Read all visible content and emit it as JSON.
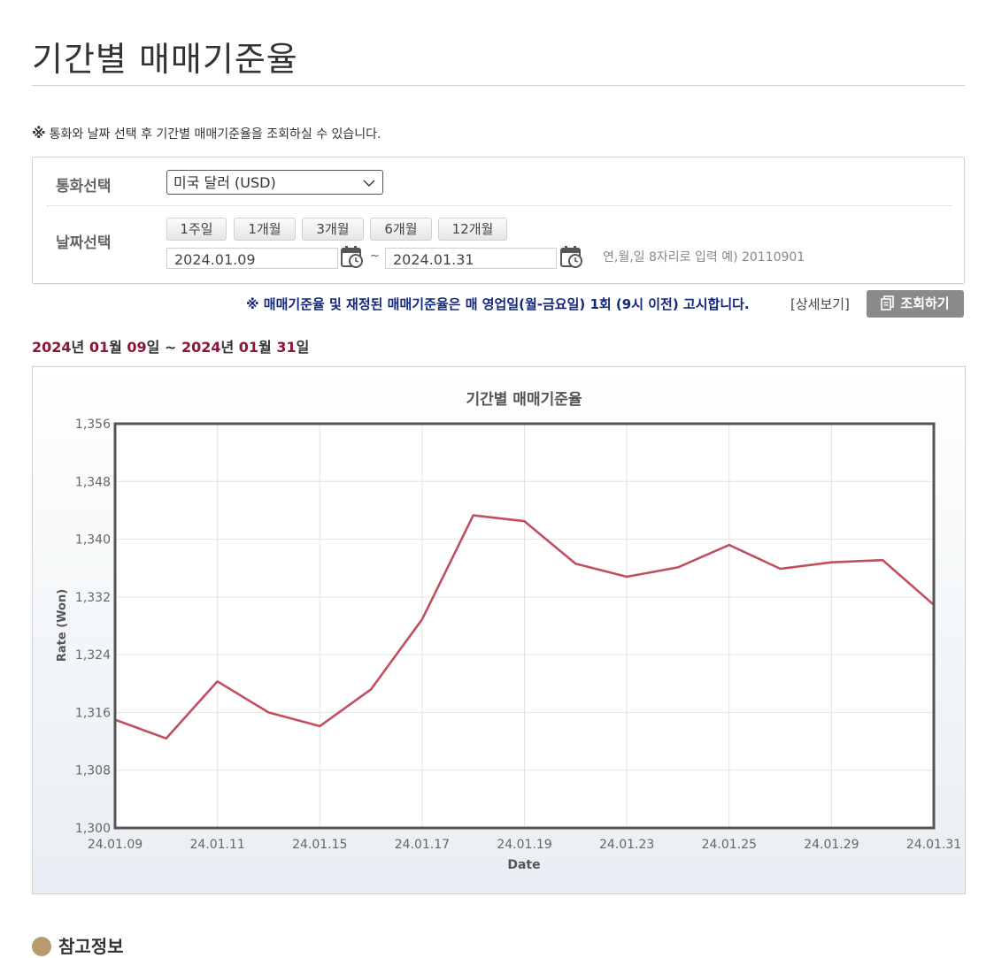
{
  "page_title": "기간별 매매기준율",
  "notice": {
    "mark": "※",
    "text": "통화와 날짜 선택 후 기간별 매매기준율을 조회하실 수 있습니다."
  },
  "search": {
    "currency_label": "통화선택",
    "currency_value": "미국 달러 (USD)",
    "date_label": "날짜선택",
    "periods": [
      {
        "label": "1주일"
      },
      {
        "label": "1개월"
      },
      {
        "label": "3개월"
      },
      {
        "label": "6개월"
      },
      {
        "label": "12개월"
      }
    ],
    "start_date": "2024.01.09",
    "separator": "~",
    "end_date": "2024.01.31",
    "date_hint": "연,월,일 8자리로 입력 예) 20110901"
  },
  "bottom_notice": "※ 매매기준율 및 재정된 매매기준율은 매 영업일(월-금요일) 1회 (9시 이전) 고시합니다.",
  "detail_link": "[상세보기]",
  "search_button": "조회하기",
  "date_range": {
    "y1": "2024",
    "y_unit1": "년 ",
    "m1": "01",
    "m_unit1": "월 ",
    "d1": "09",
    "d_unit1": "일 ~ ",
    "y2": "2024",
    "y_unit2": "년 ",
    "m2": "01",
    "m_unit2": "월 ",
    "d2": "31",
    "d_unit2": "일"
  },
  "footer_heading": "참고정보",
  "colors": {
    "line": "#c0505f",
    "accent_date": "#8b1533",
    "notice_blue": "#13277c",
    "button_gray": "#8a8a8a"
  },
  "chart_data": {
    "type": "line",
    "title": "기간별 매매기준율",
    "xlabel": "Date",
    "ylabel": "Rate (Won)",
    "ylim": [
      1300,
      1356
    ],
    "yticks": [
      1300,
      1308,
      1316,
      1324,
      1332,
      1340,
      1348,
      1356
    ],
    "ytick_labels": [
      "1,300",
      "1,308",
      "1,316",
      "1,324",
      "1,332",
      "1,340",
      "1,348",
      "1,356"
    ],
    "xtick_labels": [
      "24.01.09",
      "24.01.11",
      "24.01.15",
      "24.01.17",
      "24.01.19",
      "24.01.23",
      "24.01.25",
      "24.01.29",
      "24.01.31"
    ],
    "xtick_index": [
      0,
      2,
      4,
      6,
      8,
      10,
      12,
      14,
      16
    ],
    "x": [
      "2024-01-09",
      "2024-01-10",
      "2024-01-11",
      "2024-01-12",
      "2024-01-15",
      "2024-01-16",
      "2024-01-17",
      "2024-01-18",
      "2024-01-19",
      "2024-01-22",
      "2024-01-23",
      "2024-01-24",
      "2024-01-25",
      "2024-01-26",
      "2024-01-29",
      "2024-01-30",
      "2024-01-31"
    ],
    "values": [
      1315.0,
      1312.4,
      1320.3,
      1316.0,
      1314.1,
      1319.2,
      1328.9,
      1343.3,
      1342.5,
      1336.6,
      1334.8,
      1336.1,
      1339.2,
      1335.9,
      1336.8,
      1337.1,
      1330.9
    ],
    "grid": true,
    "legend": "none"
  }
}
